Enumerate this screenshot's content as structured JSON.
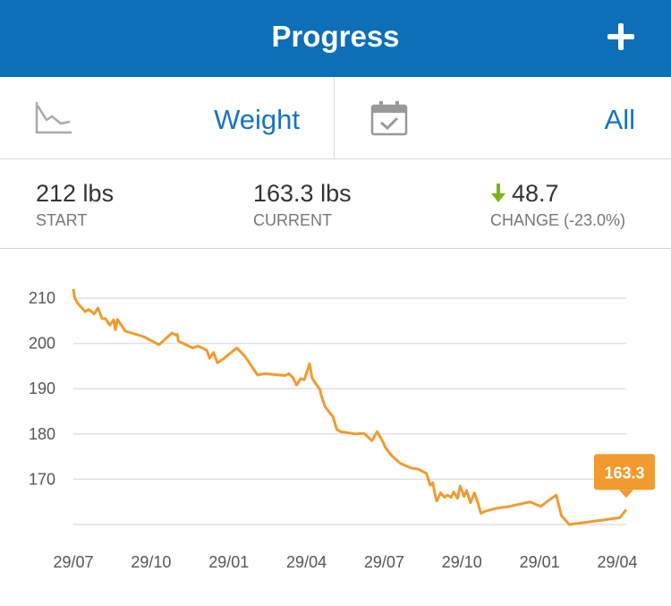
{
  "header": {
    "title": "Progress",
    "add_icon": "plus-icon"
  },
  "selectors": {
    "metric": {
      "label": "Weight",
      "icon": "line-chart-icon"
    },
    "range": {
      "label": "All",
      "icon": "calendar-check-icon"
    }
  },
  "stats": {
    "start": {
      "value": "212 lbs",
      "caption": "START"
    },
    "current": {
      "value": "163.3 lbs",
      "caption": "CURRENT"
    },
    "change": {
      "value": "48.7",
      "caption": "CHANGE (-23.0%)",
      "direction": "down",
      "arrow_color": "#7cb518"
    }
  },
  "colors": {
    "header": "#0c6fb8",
    "accent": "#1673c2",
    "line": "#f29a2e"
  },
  "chart_data": {
    "type": "line",
    "title": "",
    "xlabel": "",
    "ylabel": "",
    "x_tick_labels": [
      "29/07",
      "29/10",
      "29/01",
      "29/04",
      "29/07",
      "29/10",
      "29/01",
      "29/04"
    ],
    "y_ticks": [
      170,
      180,
      190,
      200,
      210
    ],
    "ylim": [
      160,
      214
    ],
    "grid": true,
    "callout_label": "163.3",
    "series": [
      {
        "x": [
          0,
          0.05,
          0.15,
          0.3,
          0.45,
          0.6,
          0.8,
          0.95,
          1.1,
          1.25,
          1.4,
          1.55,
          1.62,
          1.7,
          2.0,
          2.7,
          3.3,
          3.8,
          3.95,
          4.0,
          4.05,
          4.3,
          4.6,
          4.8,
          5.0,
          5.15,
          5.25,
          5.4,
          5.55,
          5.8,
          6.3,
          6.6,
          7.1,
          7.25,
          7.4,
          8.15,
          8.3,
          8.45,
          8.6,
          8.75,
          8.9,
          9.1,
          9.2,
          9.35,
          9.5,
          9.55,
          9.7,
          9.9,
          10.0,
          10.15,
          10.3,
          10.55,
          10.85,
          11.2,
          11.5,
          11.7,
          11.95,
          12.0,
          12.15,
          12.3,
          12.6,
          13.0,
          13.3,
          13.6,
          13.75,
          13.85,
          13.95,
          14.0,
          14.15,
          14.3,
          14.4,
          14.55,
          14.65,
          14.8,
          14.9,
          15.05,
          15.15,
          15.3,
          15.45,
          15.6,
          15.7,
          15.9,
          16.3,
          16.8,
          17.2,
          17.6,
          18.0,
          18.35,
          18.6,
          18.8,
          19.1,
          20.0,
          21.05,
          21.3
        ],
        "y": [
          212.0,
          210.0,
          209.0,
          208.0,
          207.0,
          207.5,
          206.5,
          207.8,
          205.5,
          205.4,
          204.0,
          205.2,
          203.0,
          205.3,
          202.7,
          201.5,
          199.7,
          202.3,
          201.8,
          202.0,
          200.5,
          199.8,
          199.0,
          199.4,
          198.9,
          198.4,
          196.7,
          198.0,
          195.7,
          196.7,
          199.0,
          197.2,
          193.0,
          193.2,
          193.3,
          192.9,
          193.3,
          192.5,
          190.8,
          192.2,
          192.0,
          195.5,
          192.3,
          191.0,
          189.8,
          188.5,
          186.0,
          184.5,
          183.8,
          181.0,
          180.5,
          180.3,
          180.0,
          180.1,
          178.5,
          180.5,
          178.0,
          177.2,
          176.0,
          175.0,
          173.5,
          172.5,
          172.2,
          171.3,
          168.7,
          169.2,
          166.2,
          165.2,
          167.0,
          166.0,
          166.5,
          166.0,
          167.2,
          165.8,
          168.5,
          166.2,
          167.5,
          164.8,
          167.0,
          164.5,
          162.5,
          163.0,
          163.6,
          164.0,
          164.5,
          165.0,
          164.0,
          165.5,
          166.5,
          162.0,
          160.0,
          160.7,
          161.5,
          163.3
        ]
      }
    ]
  }
}
